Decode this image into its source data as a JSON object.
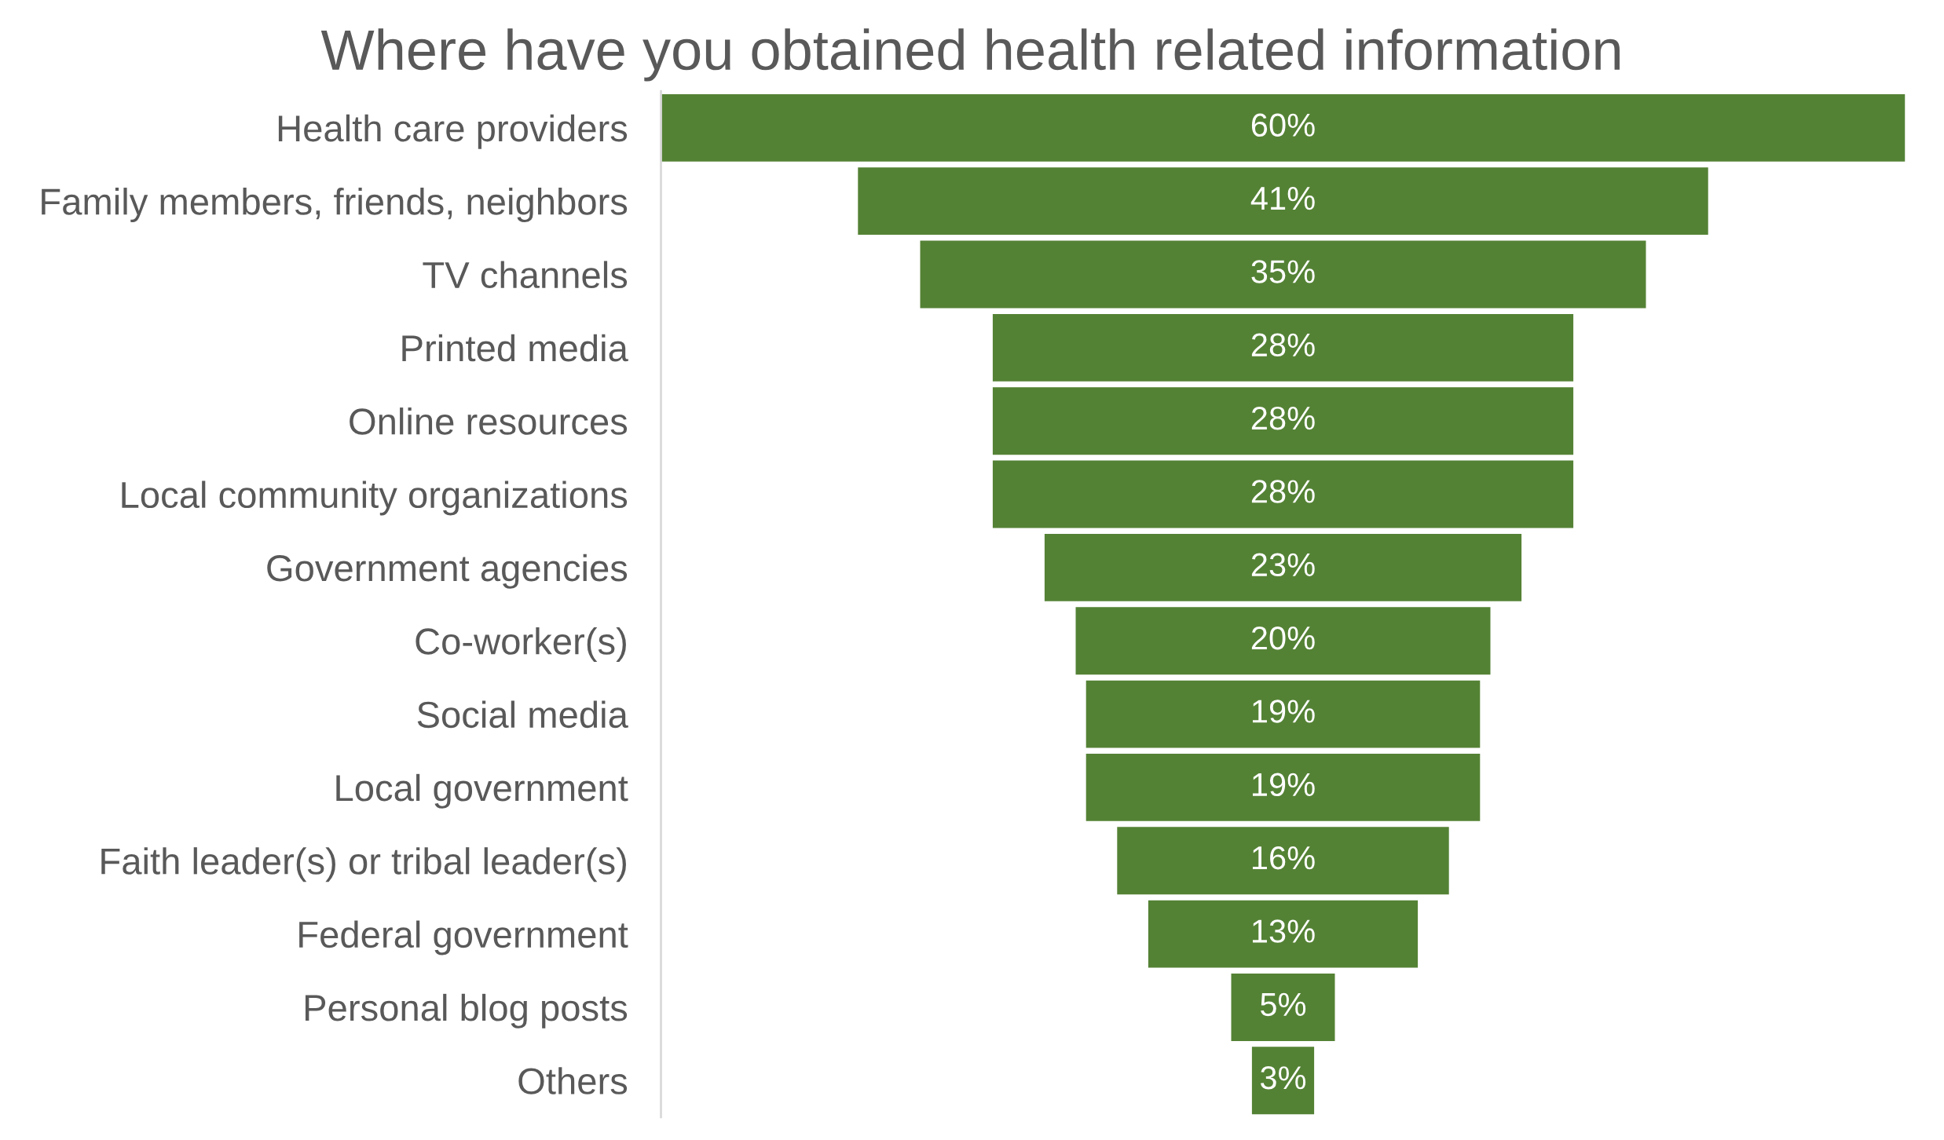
{
  "chart_data": {
    "type": "other",
    "title": "Where have you obtained health related information",
    "categories": [
      "Health care providers",
      "Family members, friends, neighbors",
      "TV channels",
      "Printed media",
      "Online resources",
      "Local community organizations",
      "Government agencies",
      "Co-worker(s)",
      "Social media",
      "Local government",
      "Faith leader(s) or tribal leader(s)",
      "Federal government",
      "Personal blog posts",
      "Others"
    ],
    "values": [
      60,
      41,
      35,
      28,
      28,
      28,
      23,
      20,
      19,
      19,
      16,
      13,
      5,
      3
    ],
    "value_labels": [
      "60%",
      "41%",
      "35%",
      "28%",
      "28%",
      "28%",
      "23%",
      "20%",
      "19%",
      "19%",
      "16%",
      "13%",
      "5%",
      "3%"
    ],
    "color": "#548235"
  }
}
